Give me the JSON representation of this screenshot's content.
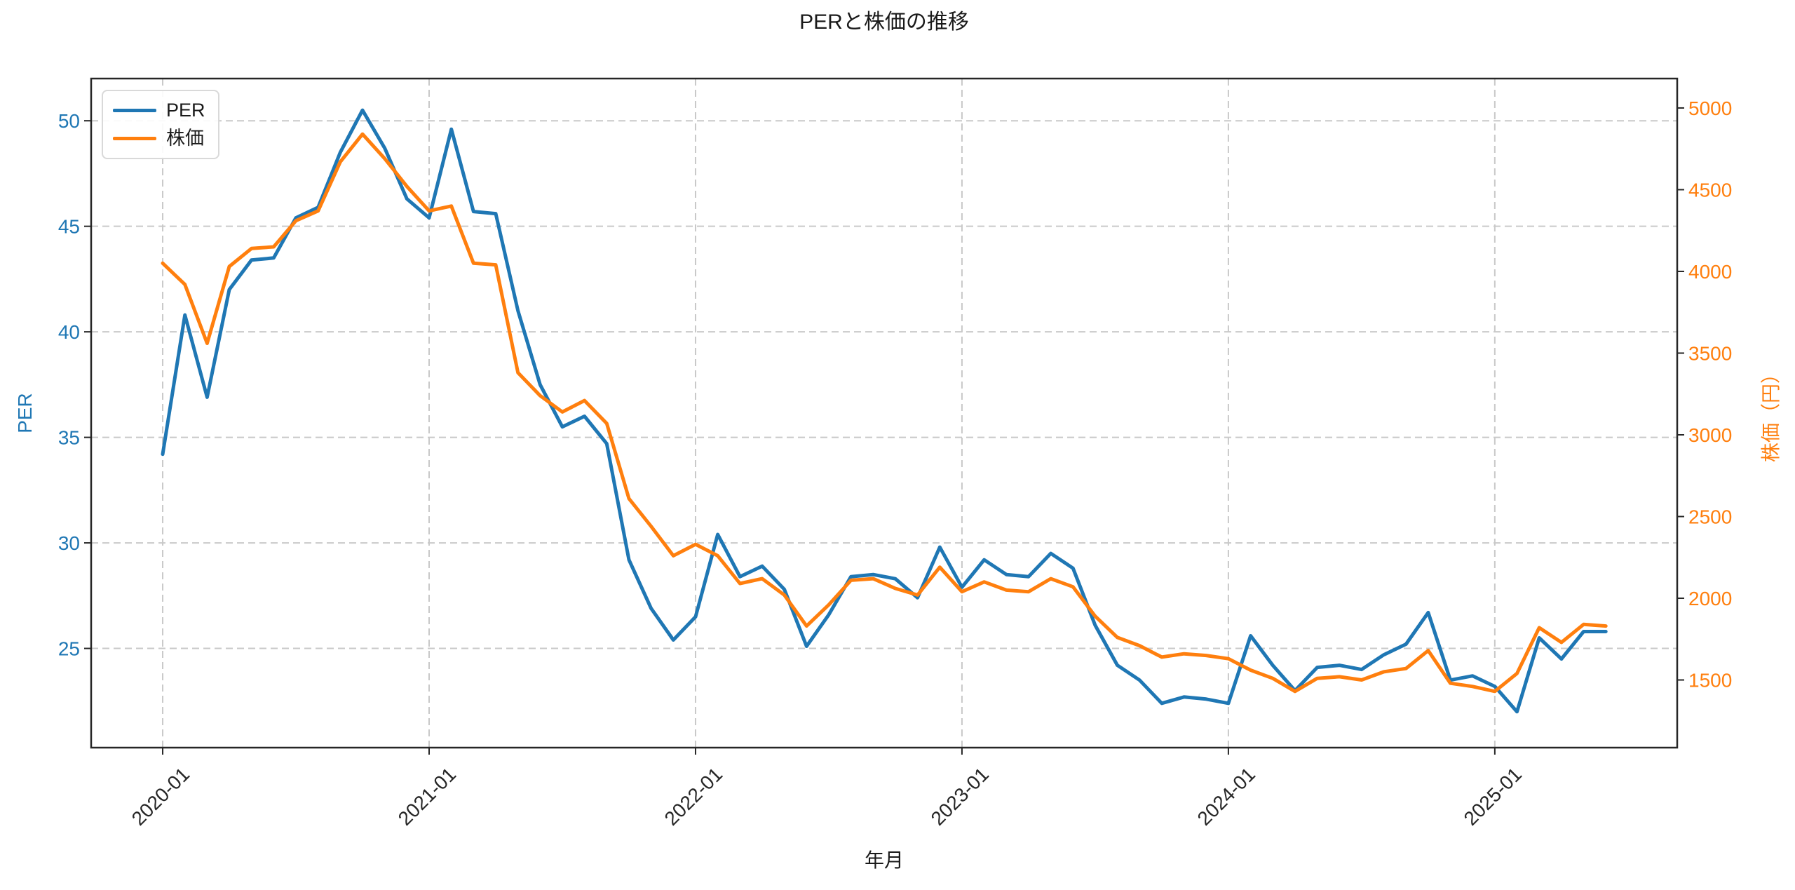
{
  "title": "PERと株価の推移",
  "legend": {
    "position": "upper left",
    "items": [
      {
        "label": "PER",
        "color": "#1f77b4"
      },
      {
        "label": "株価",
        "color": "#ff7f0e"
      }
    ]
  },
  "chart_data": {
    "type": "line",
    "title": "PERと株価の推移",
    "xlabel": "年月",
    "ylabel_left": "PER",
    "ylabel_right": "株価（円）",
    "grid": true,
    "legend_position": "upper left",
    "x": [
      "2020-01",
      "2020-02",
      "2020-03",
      "2020-04",
      "2020-05",
      "2020-06",
      "2020-07",
      "2020-08",
      "2020-09",
      "2020-10",
      "2020-11",
      "2020-12",
      "2021-01",
      "2021-02",
      "2021-03",
      "2021-04",
      "2021-05",
      "2021-06",
      "2021-07",
      "2021-08",
      "2021-09",
      "2021-10",
      "2021-11",
      "2021-12",
      "2022-01",
      "2022-02",
      "2022-03",
      "2022-04",
      "2022-05",
      "2022-06",
      "2022-07",
      "2022-08",
      "2022-09",
      "2022-10",
      "2022-11",
      "2022-12",
      "2023-01",
      "2023-02",
      "2023-03",
      "2023-04",
      "2023-05",
      "2023-06",
      "2023-07",
      "2023-08",
      "2023-09",
      "2023-10",
      "2023-11",
      "2023-12",
      "2024-01",
      "2024-02",
      "2024-03",
      "2024-04",
      "2024-05",
      "2024-06",
      "2024-07",
      "2024-08",
      "2024-09",
      "2024-10",
      "2024-11",
      "2024-12",
      "2025-01",
      "2025-02",
      "2025-03",
      "2025-04",
      "2025-05",
      "2025-06"
    ],
    "series": [
      {
        "name": "PER",
        "axis": "left",
        "color": "#1f77b4",
        "values": [
          34.2,
          40.8,
          36.9,
          42.0,
          43.4,
          43.5,
          45.4,
          45.9,
          48.5,
          50.5,
          48.7,
          46.3,
          45.4,
          49.6,
          45.7,
          45.6,
          41.0,
          37.5,
          35.5,
          36.0,
          34.7,
          29.2,
          26.9,
          25.4,
          26.5,
          30.4,
          28.4,
          28.9,
          27.8,
          25.1,
          26.6,
          28.4,
          28.5,
          28.3,
          27.4,
          29.8,
          27.9,
          29.2,
          28.5,
          28.4,
          29.5,
          28.8,
          26.1,
          24.2,
          23.5,
          22.4,
          22.7,
          22.6,
          22.4,
          25.6,
          24.2,
          23.0,
          24.1,
          24.2,
          24.0,
          24.7,
          25.2,
          26.7,
          23.5,
          23.7,
          23.2,
          22.0,
          25.5,
          24.5,
          25.8,
          25.8
        ]
      },
      {
        "name": "株価",
        "axis": "right",
        "color": "#ff7f0e",
        "values": [
          4050,
          3920,
          3560,
          4030,
          4140,
          4150,
          4310,
          4370,
          4670,
          4840,
          4690,
          4520,
          4370,
          4400,
          4050,
          4040,
          3380,
          3240,
          3140,
          3210,
          3070,
          2610,
          2440,
          2260,
          2330,
          2260,
          2090,
          2120,
          2020,
          1830,
          1960,
          2110,
          2120,
          2060,
          2020,
          2190,
          2040,
          2100,
          2050,
          2040,
          2120,
          2070,
          1890,
          1760,
          1710,
          1640,
          1660,
          1650,
          1630,
          1560,
          1510,
          1430,
          1510,
          1520,
          1500,
          1550,
          1570,
          1680,
          1480,
          1460,
          1430,
          1540,
          1820,
          1730,
          1840,
          1830
        ]
      }
    ],
    "ylim_left": [
      20.3,
      52.0
    ],
    "ylim_right": [
      1086,
      5180
    ],
    "yticks_left": [
      25,
      30,
      35,
      40,
      45,
      50
    ],
    "yticks_right": [
      1500,
      2000,
      2500,
      3000,
      3500,
      4000,
      4500,
      5000
    ],
    "xticks": {
      "positions": [
        0,
        12,
        24,
        36,
        48,
        60
      ],
      "labels": [
        "2020-01",
        "2021-01",
        "2022-01",
        "2023-01",
        "2024-01",
        "2025-01"
      ]
    }
  }
}
